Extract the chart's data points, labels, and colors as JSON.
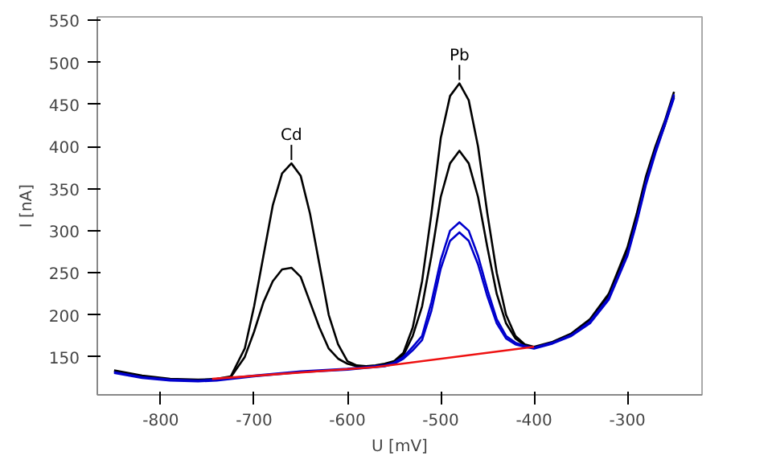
{
  "chart_data": {
    "type": "line",
    "xlabel": "U [mV]",
    "ylabel": "I [nA]",
    "xlim": [
      -868,
      -220
    ],
    "ylim": [
      105,
      554
    ],
    "xticks": [
      -800,
      -700,
      -600,
      -500,
      -400,
      -300
    ],
    "yticks": [
      150,
      200,
      250,
      300,
      350,
      400,
      450,
      500,
      550
    ],
    "grid": false,
    "line_style": "solid",
    "marker": "none",
    "annotations": [
      {
        "text": "Cd",
        "x": -660,
        "y": 380
      },
      {
        "text": "Pb",
        "x": -480,
        "y": 475
      }
    ],
    "series": [
      {
        "color": "#000000",
        "x": [
          -850,
          -820,
          -790,
          -760,
          -740,
          -725,
          -710,
          -700,
          -690,
          -680,
          -670,
          -660,
          -650,
          -640,
          -630,
          -620,
          -610,
          -600,
          -590,
          -580,
          -570,
          -560,
          -550,
          -540,
          -530,
          -520,
          -510,
          -500,
          -490,
          -480,
          -470,
          -460,
          -450,
          -440,
          -430,
          -420,
          -410,
          -400,
          -380,
          -360,
          -340,
          -320,
          -300,
          -290,
          -280,
          -270,
          -260,
          -250
        ],
        "values": [
          134,
          128,
          124,
          123,
          124,
          127,
          160,
          210,
          270,
          330,
          368,
          380,
          365,
          320,
          260,
          200,
          165,
          145,
          140,
          139,
          140,
          142,
          145,
          155,
          185,
          240,
          320,
          410,
          460,
          475,
          455,
          400,
          320,
          250,
          200,
          175,
          165,
          162,
          168,
          178,
          195,
          225,
          280,
          320,
          365,
          400,
          430,
          465
        ]
      },
      {
        "color": "#000000",
        "x": [
          -850,
          -820,
          -790,
          -760,
          -740,
          -725,
          -710,
          -700,
          -690,
          -680,
          -670,
          -660,
          -650,
          -640,
          -630,
          -620,
          -610,
          -600,
          -590,
          -580,
          -570,
          -560,
          -550,
          -540,
          -530,
          -520,
          -510,
          -500,
          -490,
          -480,
          -470,
          -460,
          -450,
          -440,
          -430,
          -420,
          -410,
          -400,
          -380,
          -360,
          -340,
          -320,
          -300,
          -290,
          -280,
          -270,
          -260,
          -250
        ],
        "values": [
          133,
          127,
          123,
          122,
          123,
          126,
          150,
          180,
          215,
          240,
          254,
          256,
          245,
          215,
          185,
          160,
          148,
          142,
          139,
          138,
          139,
          141,
          144,
          152,
          175,
          210,
          270,
          340,
          380,
          395,
          380,
          340,
          280,
          225,
          190,
          172,
          164,
          161,
          167,
          177,
          193,
          222,
          275,
          315,
          360,
          395,
          425,
          460
        ]
      },
      {
        "color": "#0000cc",
        "x": [
          -850,
          -820,
          -790,
          -760,
          -740,
          -725,
          -700,
          -650,
          -600,
          -580,
          -570,
          -560,
          -550,
          -540,
          -530,
          -520,
          -510,
          -500,
          -490,
          -480,
          -470,
          -460,
          -450,
          -440,
          -430,
          -420,
          -410,
          -400,
          -380,
          -360,
          -340,
          -320,
          -300,
          -290,
          -280,
          -270,
          -260,
          -250
        ],
        "values": [
          132,
          126,
          123,
          122,
          123,
          125,
          128,
          133,
          136,
          138,
          139,
          140,
          143,
          150,
          162,
          175,
          215,
          265,
          300,
          310,
          300,
          270,
          230,
          195,
          175,
          167,
          163,
          161,
          167,
          176,
          192,
          220,
          272,
          312,
          358,
          395,
          428,
          462
        ]
      },
      {
        "color": "#0000cc",
        "x": [
          -850,
          -820,
          -790,
          -760,
          -740,
          -725,
          -700,
          -650,
          -600,
          -580,
          -570,
          -560,
          -550,
          -540,
          -530,
          -520,
          -510,
          -500,
          -490,
          -480,
          -470,
          -460,
          -450,
          -440,
          -430,
          -420,
          -410,
          -400,
          -380,
          -360,
          -340,
          -320,
          -300,
          -290,
          -280,
          -270,
          -260,
          -250
        ],
        "values": [
          131,
          125,
          122,
          121,
          122,
          124,
          127,
          132,
          135,
          137,
          138,
          139,
          142,
          148,
          158,
          170,
          205,
          255,
          288,
          298,
          288,
          260,
          222,
          190,
          172,
          165,
          162,
          160,
          166,
          175,
          190,
          218,
          270,
          310,
          355,
          392,
          425,
          458
        ]
      },
      {
        "color": "#ee1111",
        "x": [
          -745,
          -570,
          -400
        ],
        "values": [
          124,
          138,
          162
        ]
      }
    ]
  }
}
